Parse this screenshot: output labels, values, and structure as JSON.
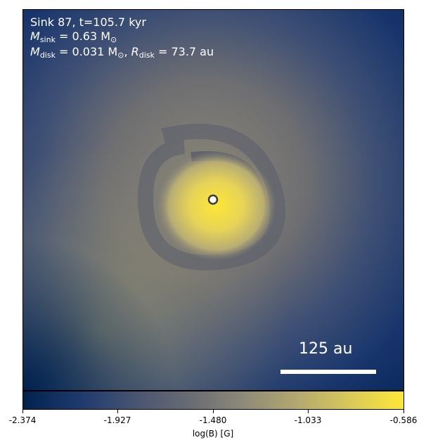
{
  "annotation": {
    "line1": "Sink 87, t=105.7 kyr",
    "m_sink_symbol": "M",
    "m_sink_sub": "sink",
    "m_sink_value": " = 0.63 M",
    "m_disk_symbol": "M",
    "m_disk_sub": "disk",
    "m_disk_value": " = 0.031 M",
    "r_disk_symbol": "R",
    "r_disk_sub": "disk",
    "r_disk_value": " = 73.7 au",
    "sun_symbol": "⊙"
  },
  "scale_bar": {
    "label": "125 au"
  },
  "colorbar": {
    "label": "log(B) [G]",
    "ticks": [
      "-2.374",
      "-1.927",
      "-1.480",
      "-1.033",
      "-0.586"
    ],
    "cmap_colors": [
      "#00224e",
      "#6b6e73",
      "#fde737"
    ]
  }
}
